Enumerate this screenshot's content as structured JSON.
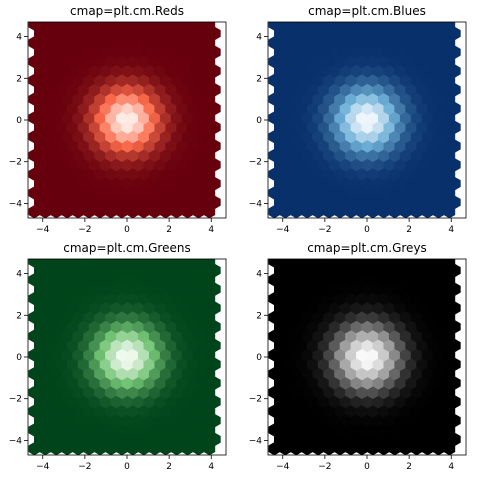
{
  "chart_data": [
    {
      "type": "heatmap",
      "subtype": "hexbin",
      "title": "cmap=plt.cm.Reds",
      "xlim": [
        -4.7,
        4.7
      ],
      "ylim": [
        -4.7,
        4.7
      ],
      "xticks": [
        -4,
        -2,
        0,
        2,
        4
      ],
      "yticks": [
        -4,
        -2,
        0,
        2,
        4
      ],
      "xlabel": "",
      "ylabel": "",
      "grid": false,
      "colormap": {
        "name": "Reds",
        "low": "#fff5f0",
        "mid": "#fb6a4a",
        "high": "#67000d"
      },
      "reversed": true,
      "extent": [
        -4.4,
        4.4
      ],
      "density": "gaussian peak centered at (0, 0), falling off radially"
    },
    {
      "type": "heatmap",
      "subtype": "hexbin",
      "title": "cmap=plt.cm.Blues",
      "xlim": [
        -4.7,
        4.7
      ],
      "ylim": [
        -4.7,
        4.7
      ],
      "xticks": [
        -4,
        -2,
        0,
        2,
        4
      ],
      "yticks": [
        -4,
        -2,
        0,
        2,
        4
      ],
      "xlabel": "",
      "ylabel": "",
      "grid": false,
      "colormap": {
        "name": "Blues",
        "low": "#f7fbff",
        "mid": "#6baed6",
        "high": "#08306b"
      },
      "reversed": true,
      "extent": [
        -4.4,
        4.4
      ],
      "density": "gaussian peak centered at (0, 0), falling off radially"
    },
    {
      "type": "heatmap",
      "subtype": "hexbin",
      "title": "cmap=plt.cm.Greens",
      "xlim": [
        -4.7,
        4.7
      ],
      "ylim": [
        -4.7,
        4.7
      ],
      "xticks": [
        -4,
        -2,
        0,
        2,
        4
      ],
      "yticks": [
        -4,
        -2,
        0,
        2,
        4
      ],
      "xlabel": "",
      "ylabel": "",
      "grid": false,
      "colormap": {
        "name": "Greens",
        "low": "#f7fcf5",
        "mid": "#74c476",
        "high": "#00441b"
      },
      "reversed": true,
      "extent": [
        -4.4,
        4.4
      ],
      "density": "gaussian peak centered at (0, 0), falling off radially"
    },
    {
      "type": "heatmap",
      "subtype": "hexbin",
      "title": "cmap=plt.cm.Greys",
      "xlim": [
        -4.7,
        4.7
      ],
      "ylim": [
        -4.7,
        4.7
      ],
      "xticks": [
        -4,
        -2,
        0,
        2,
        4
      ],
      "yticks": [
        -4,
        -2,
        0,
        2,
        4
      ],
      "xlabel": "",
      "ylabel": "",
      "grid": false,
      "colormap": {
        "name": "Greys",
        "low": "#ffffff",
        "mid": "#969696",
        "high": "#000000"
      },
      "reversed": true,
      "extent": [
        -4.4,
        4.4
      ],
      "density": "gaussian peak centered at (0, 0), falling off radially"
    }
  ]
}
